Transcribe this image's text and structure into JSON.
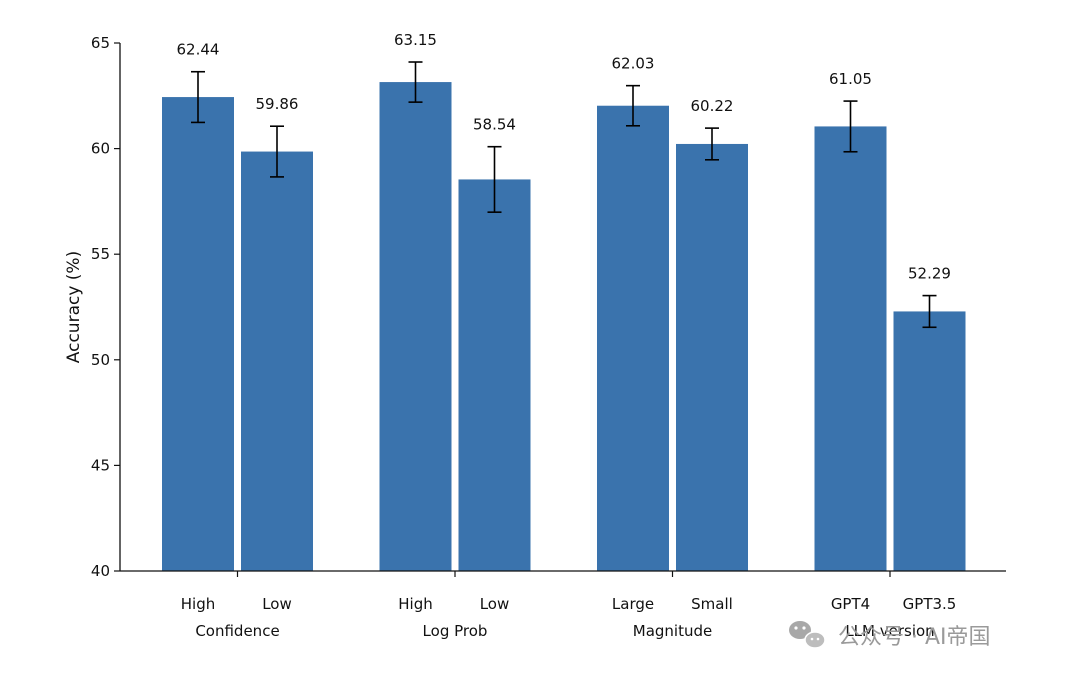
{
  "chart_data": {
    "type": "bar",
    "ylabel": "Accuracy (%)",
    "ylim": [
      40,
      65
    ],
    "yticks": [
      40,
      45,
      50,
      55,
      60,
      65
    ],
    "groups": [
      {
        "name": "Confidence",
        "bars": [
          {
            "label": "High",
            "value": 62.44,
            "err": 1.2,
            "value_label": "62.44"
          },
          {
            "label": "Low",
            "value": 59.86,
            "err": 1.2,
            "value_label": "59.86"
          }
        ]
      },
      {
        "name": "Log Prob",
        "bars": [
          {
            "label": "High",
            "value": 63.15,
            "err": 0.95,
            "value_label": "63.15"
          },
          {
            "label": "Low",
            "value": 58.54,
            "err": 1.55,
            "value_label": "58.54"
          }
        ]
      },
      {
        "name": "Magnitude",
        "bars": [
          {
            "label": "Large",
            "value": 62.03,
            "err": 0.95,
            "value_label": "62.03"
          },
          {
            "label": "Small",
            "value": 60.22,
            "err": 0.75,
            "value_label": "60.22"
          }
        ]
      },
      {
        "name": "LLM version",
        "bars": [
          {
            "label": "GPT4",
            "value": 61.05,
            "err": 1.2,
            "value_label": "61.05"
          },
          {
            "label": "GPT3.5",
            "value": 52.29,
            "err": 0.75,
            "value_label": "52.29"
          }
        ]
      }
    ],
    "bar_color": "#3a73ad",
    "grid": false,
    "error_bars": true
  },
  "watermark": {
    "text": "公众号 · AI帝国",
    "icon": "wechat-icon"
  }
}
